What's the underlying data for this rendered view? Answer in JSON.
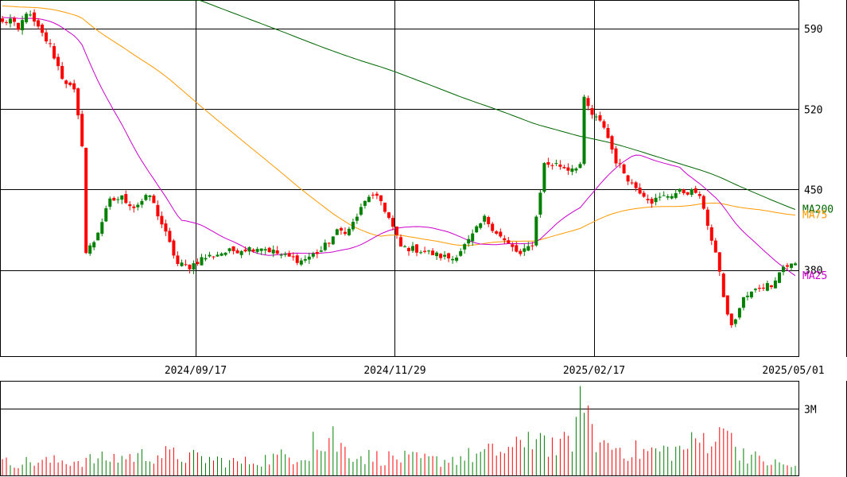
{
  "chart_data": {
    "type": "candlestick",
    "price_axis": {
      "ticks": [
        {
          "value": 590,
          "label": "590"
        },
        {
          "value": 520,
          "label": "520"
        },
        {
          "value": 450,
          "label": "450"
        },
        {
          "value": 380,
          "label": "380"
        }
      ],
      "range": [
        305,
        615
      ]
    },
    "date_axis": {
      "ticks": [
        {
          "index": 49,
          "label": "2024/09/17"
        },
        {
          "index": 99,
          "label": "2024/11/29"
        },
        {
          "index": 149,
          "label": "2025/02/17"
        },
        {
          "index": 199,
          "label": "2025/05/01"
        }
      ],
      "count": 200
    },
    "volume_axis": {
      "ticks": [
        {
          "value": 3000000,
          "label": "3M"
        }
      ],
      "range": [
        0,
        4200000
      ]
    },
    "colors": {
      "up": "#008000",
      "down": "#ff0000",
      "ma25": "#cc00cc",
      "ma75": "#ff9900",
      "ma200": "#006600",
      "grid": "#000000"
    },
    "ma_labels": [
      {
        "name": "MA200",
        "color": "#006600"
      },
      {
        "name": "MA75",
        "color": "#ff9900"
      },
      {
        "name": "MA25",
        "color": "#cc00cc"
      }
    ],
    "close_anchors": [
      [
        0,
        595
      ],
      [
        2,
        598
      ],
      [
        4,
        588
      ],
      [
        6,
        605
      ],
      [
        9,
        590
      ],
      [
        12,
        575
      ],
      [
        15,
        548
      ],
      [
        18,
        535
      ],
      [
        20,
        490
      ],
      [
        21,
        395
      ],
      [
        23,
        405
      ],
      [
        27,
        440
      ],
      [
        30,
        443
      ],
      [
        33,
        435
      ],
      [
        37,
        445
      ],
      [
        40,
        420
      ],
      [
        44,
        385
      ],
      [
        47,
        383
      ],
      [
        50,
        390
      ],
      [
        55,
        395
      ],
      [
        60,
        398
      ],
      [
        65,
        400
      ],
      [
        70,
        393
      ],
      [
        75,
        388
      ],
      [
        80,
        397
      ],
      [
        84,
        413
      ],
      [
        87,
        415
      ],
      [
        92,
        445
      ],
      [
        95,
        440
      ],
      [
        97,
        425
      ],
      [
        100,
        400
      ],
      [
        105,
        397
      ],
      [
        110,
        392
      ],
      [
        113,
        390
      ],
      [
        117,
        405
      ],
      [
        121,
        425
      ],
      [
        126,
        405
      ],
      [
        130,
        393
      ],
      [
        133,
        403
      ],
      [
        136,
        472
      ],
      [
        139,
        472
      ],
      [
        142,
        468
      ],
      [
        145,
        472
      ],
      [
        146,
        528
      ],
      [
        148,
        515
      ],
      [
        151,
        505
      ],
      [
        154,
        475
      ],
      [
        158,
        455
      ],
      [
        163,
        440
      ],
      [
        167,
        445
      ],
      [
        170,
        448
      ],
      [
        174,
        448
      ],
      [
        176,
        435
      ],
      [
        178,
        405
      ],
      [
        180,
        380
      ],
      [
        181,
        355
      ],
      [
        183,
        330
      ],
      [
        186,
        355
      ],
      [
        190,
        365
      ],
      [
        193,
        368
      ],
      [
        196,
        383
      ],
      [
        199,
        385
      ]
    ],
    "volume_anchors": [
      [
        0,
        0.6
      ],
      [
        20,
        0.7
      ],
      [
        40,
        1.0
      ],
      [
        60,
        0.6
      ],
      [
        78,
        1.1
      ],
      [
        83,
        1.5
      ],
      [
        90,
        0.9
      ],
      [
        110,
        0.7
      ],
      [
        130,
        1.3
      ],
      [
        134,
        1.9
      ],
      [
        140,
        1.2
      ],
      [
        146,
        2.6
      ],
      [
        150,
        1.5
      ],
      [
        160,
        1.1
      ],
      [
        170,
        1.2
      ],
      [
        178,
        1.9
      ],
      [
        183,
        1.5
      ],
      [
        190,
        0.7
      ],
      [
        199,
        0.4
      ]
    ],
    "volume_spikes": [
      [
        78,
        1.95
      ],
      [
        83,
        2.2
      ],
      [
        132,
        1.95
      ],
      [
        135,
        1.9
      ],
      [
        145,
        4.0
      ],
      [
        146,
        2.8
      ],
      [
        148,
        2.3
      ],
      [
        181,
        2.1
      ],
      [
        182,
        2.0
      ],
      [
        183,
        1.9
      ]
    ]
  }
}
